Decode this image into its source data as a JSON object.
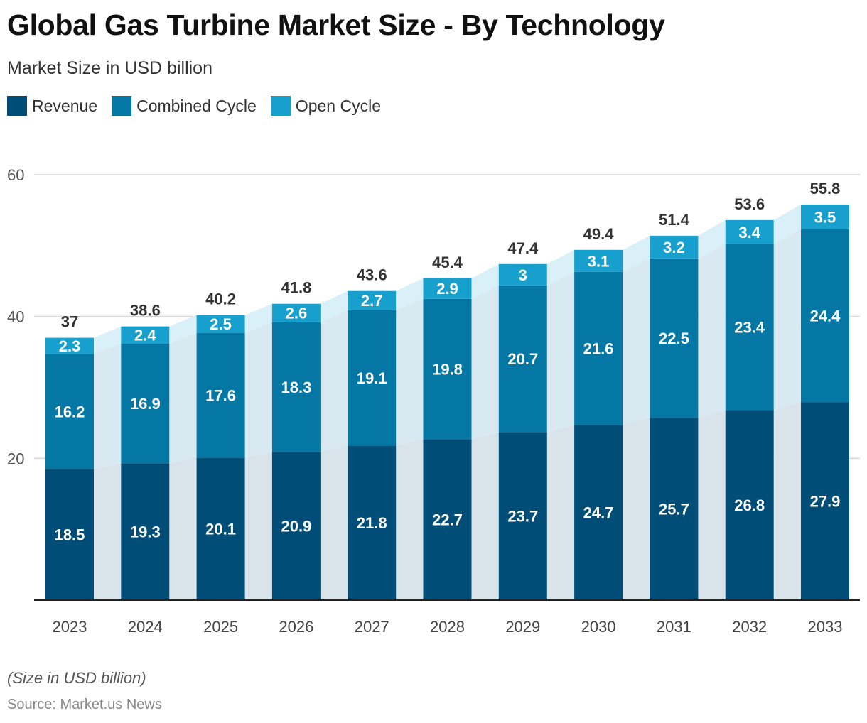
{
  "title": "Global Gas Turbine Market Size - By Technology",
  "subtitle": "Market Size in USD billion",
  "note": "(Size in USD billion)",
  "source": "Source: Market.us News",
  "chart_data": {
    "type": "bar",
    "stacked": true,
    "categories": [
      "2023",
      "2024",
      "2025",
      "2026",
      "2027",
      "2028",
      "2029",
      "2030",
      "2031",
      "2032",
      "2033"
    ],
    "series": [
      {
        "name": "Revenue",
        "color": "#004e78",
        "values": [
          18.5,
          19.3,
          20.1,
          20.9,
          21.8,
          22.7,
          23.7,
          24.7,
          25.7,
          26.8,
          27.9
        ]
      },
      {
        "name": "Combined Cycle",
        "color": "#0577a4",
        "values": [
          16.2,
          16.9,
          17.6,
          18.3,
          19.1,
          19.8,
          20.7,
          21.6,
          22.5,
          23.4,
          24.4
        ]
      },
      {
        "name": "Open Cycle",
        "color": "#17a0ce",
        "values": [
          2.3,
          2.4,
          2.5,
          2.6,
          2.7,
          2.9,
          3,
          3.1,
          3.2,
          3.4,
          3.5
        ]
      }
    ],
    "totals": [
      37,
      38.6,
      40.2,
      41.8,
      43.6,
      45.4,
      47.4,
      49.4,
      51.4,
      53.6,
      55.8
    ],
    "ylim": [
      0,
      60
    ],
    "yticks": [
      20,
      40,
      60
    ],
    "grid": true,
    "legend_position": "top-left"
  }
}
